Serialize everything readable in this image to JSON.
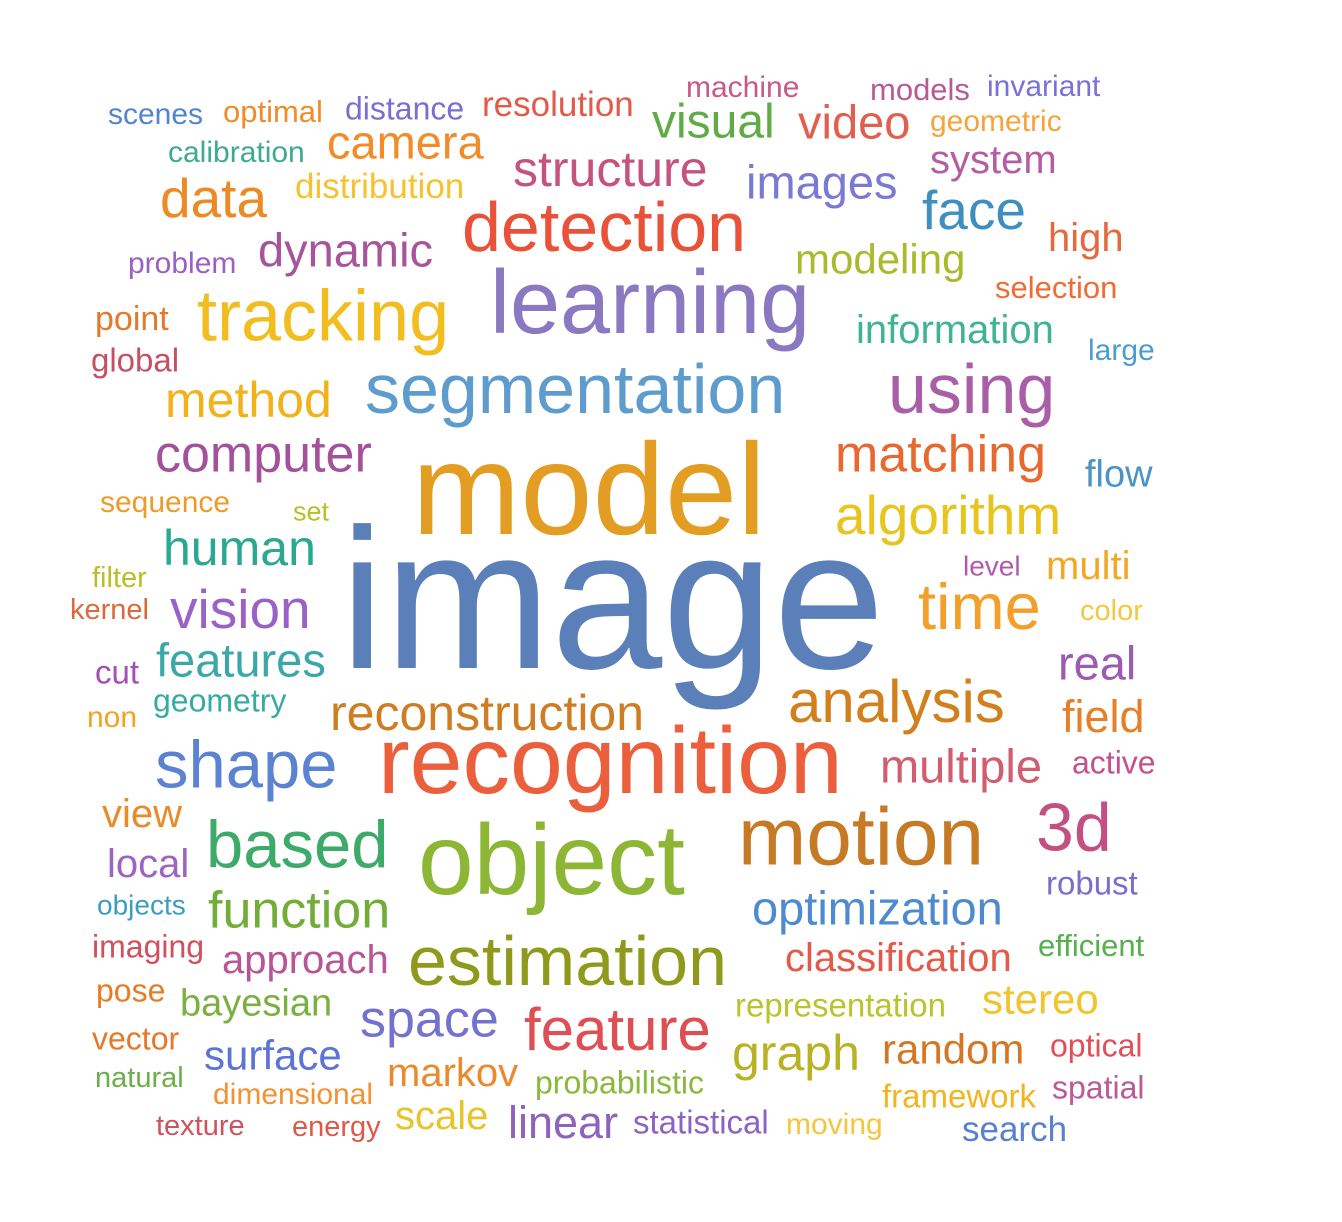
{
  "cloud": {
    "words": [
      {
        "text": "image",
        "color": "#5b7fb9"
      },
      {
        "text": "model",
        "color": "#e39d23"
      },
      {
        "text": "recognition",
        "color": "#ec5f3c"
      },
      {
        "text": "object",
        "color": "#8db635"
      },
      {
        "text": "learning",
        "color": "#8a78c0"
      },
      {
        "text": "segmentation",
        "color": "#5d9ccc"
      },
      {
        "text": "detection",
        "color": "#e95138"
      },
      {
        "text": "motion",
        "color": "#c67a24"
      },
      {
        "text": "estimation",
        "color": "#8f9a1d"
      },
      {
        "text": "tracking",
        "color": "#f1bd1f"
      },
      {
        "text": "using",
        "color": "#a95ea8"
      },
      {
        "text": "shape",
        "color": "#5b83d1"
      },
      {
        "text": "based",
        "color": "#3daa6a"
      },
      {
        "text": "analysis",
        "color": "#d2801d"
      },
      {
        "text": "time",
        "color": "#f3a02a"
      },
      {
        "text": "3d",
        "color": "#c25080"
      },
      {
        "text": "feature",
        "color": "#dd4f53"
      },
      {
        "text": "function",
        "color": "#72ad38"
      },
      {
        "text": "algorithm",
        "color": "#e8c41f"
      },
      {
        "text": "matching",
        "color": "#e9682f"
      },
      {
        "text": "computer",
        "color": "#a3519b"
      },
      {
        "text": "structure",
        "color": "#c5537d"
      },
      {
        "text": "vision",
        "color": "#9a62c7"
      },
      {
        "text": "space",
        "color": "#7472cf"
      },
      {
        "text": "reconstruction",
        "color": "#cf7d22"
      },
      {
        "text": "human",
        "color": "#2aa891"
      },
      {
        "text": "face",
        "color": "#3e8fc0"
      },
      {
        "text": "optimization",
        "color": "#4e8ad0"
      },
      {
        "text": "data",
        "color": "#ec8a23"
      },
      {
        "text": "method",
        "color": "#f1b21b"
      },
      {
        "text": "graph",
        "color": "#b9b224"
      },
      {
        "text": "camera",
        "color": "#f28b28"
      },
      {
        "text": "multiple",
        "color": "#d15d70"
      },
      {
        "text": "dynamic",
        "color": "#a8549b"
      },
      {
        "text": "features",
        "color": "#3ba8a8"
      },
      {
        "text": "surface",
        "color": "#5b74d5"
      },
      {
        "text": "video",
        "color": "#e05f4e"
      },
      {
        "text": "images",
        "color": "#7a7ad4"
      },
      {
        "text": "visual",
        "color": "#5fac45"
      },
      {
        "text": "real",
        "color": "#9c5ab0"
      },
      {
        "text": "classification",
        "color": "#e35a48"
      },
      {
        "text": "approach",
        "color": "#b75596"
      },
      {
        "text": "random",
        "color": "#d67625"
      },
      {
        "text": "stereo",
        "color": "#f2c32b"
      },
      {
        "text": "field",
        "color": "#e77f27"
      },
      {
        "text": "linear",
        "color": "#8e63bc"
      },
      {
        "text": "modeling",
        "color": "#a8bb2c"
      },
      {
        "text": "information",
        "color": "#3fb393"
      },
      {
        "text": "markov",
        "color": "#ea8a2c"
      },
      {
        "text": "bayesian",
        "color": "#79b140"
      },
      {
        "text": "multi",
        "color": "#f2a825"
      },
      {
        "text": "scale",
        "color": "#e7c32c"
      },
      {
        "text": "system",
        "color": "#b55ca2"
      },
      {
        "text": "high",
        "color": "#e6693d"
      },
      {
        "text": "view",
        "color": "#e88b28"
      },
      {
        "text": "local",
        "color": "#9e64c2"
      },
      {
        "text": "flow",
        "color": "#4a94c6"
      },
      {
        "text": "robust",
        "color": "#7d6ccc"
      },
      {
        "text": "distribution",
        "color": "#f5c230"
      },
      {
        "text": "resolution",
        "color": "#e35a48"
      },
      {
        "text": "geometry",
        "color": "#38aaa5"
      },
      {
        "text": "probabilistic",
        "color": "#8ab83b"
      },
      {
        "text": "statistical",
        "color": "#8c62c4"
      },
      {
        "text": "representation",
        "color": "#b8c42c"
      },
      {
        "text": "framework",
        "color": "#f2b51d"
      },
      {
        "text": "spatial",
        "color": "#bb5999"
      },
      {
        "text": "search",
        "color": "#5781cf"
      },
      {
        "text": "optical",
        "color": "#e14f59"
      },
      {
        "text": "efficient",
        "color": "#58af50"
      },
      {
        "text": "active",
        "color": "#c4508c"
      },
      {
        "text": "large",
        "color": "#4c9dce"
      },
      {
        "text": "selection",
        "color": "#ed6d33"
      },
      {
        "text": "geometric",
        "color": "#f6a43a"
      },
      {
        "text": "machine",
        "color": "#c85a84"
      },
      {
        "text": "models",
        "color": "#b85a95"
      },
      {
        "text": "invariant",
        "color": "#7a71d4"
      },
      {
        "text": "distance",
        "color": "#7a6fd1"
      },
      {
        "text": "optimal",
        "color": "#ef8d2b"
      },
      {
        "text": "scenes",
        "color": "#5285d0"
      },
      {
        "text": "calibration",
        "color": "#3eab8e"
      },
      {
        "text": "problem",
        "color": "#9d5fc2"
      },
      {
        "text": "point",
        "color": "#e2792c"
      },
      {
        "text": "global",
        "color": "#c54f63"
      },
      {
        "text": "sequence",
        "color": "#ee9b2a"
      },
      {
        "text": "set",
        "color": "#b7c123"
      },
      {
        "text": "filter",
        "color": "#b8c026"
      },
      {
        "text": "kernel",
        "color": "#d96a3c"
      },
      {
        "text": "cut",
        "color": "#a250b4"
      },
      {
        "text": "non",
        "color": "#f1a424"
      },
      {
        "text": "level",
        "color": "#b15aab"
      },
      {
        "text": "color",
        "color": "#f4c83d"
      },
      {
        "text": "objects",
        "color": "#3b9ec0"
      },
      {
        "text": "imaging",
        "color": "#d24f5c"
      },
      {
        "text": "pose",
        "color": "#e67c27"
      },
      {
        "text": "vector",
        "color": "#e7782a"
      },
      {
        "text": "natural",
        "color": "#6cae49"
      },
      {
        "text": "dimensional",
        "color": "#f29233"
      },
      {
        "text": "texture",
        "color": "#cb5460"
      },
      {
        "text": "energy",
        "color": "#de5a48"
      },
      {
        "text": "moving",
        "color": "#f3c640"
      }
    ]
  }
}
